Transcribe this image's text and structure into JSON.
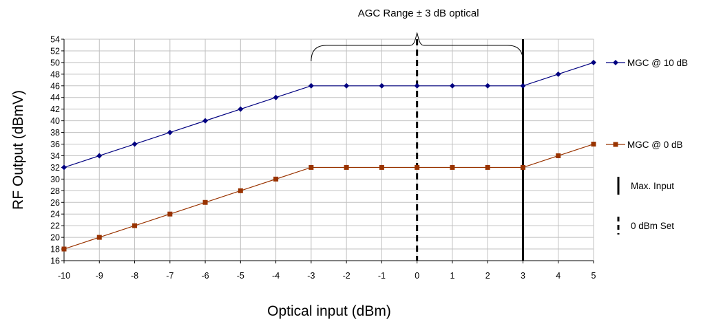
{
  "chart_data": {
    "type": "line",
    "title": "",
    "xlabel": "Optical input (dBm)",
    "ylabel": "RF Output (dBmV)",
    "x": [
      -10,
      -9,
      -8,
      -7,
      -6,
      -5,
      -4,
      -3,
      -2,
      -1,
      0,
      1,
      2,
      3,
      4,
      5
    ],
    "xlim": [
      -10,
      5
    ],
    "ylim": [
      16,
      54
    ],
    "ytick_step": 2,
    "grid": true,
    "series": [
      {
        "name": "MGC @ 10 dB",
        "color": "#000080",
        "marker": "diamond",
        "values": [
          32,
          34,
          36,
          38,
          40,
          42,
          44,
          46,
          46,
          46,
          46,
          46,
          46,
          46,
          48,
          50
        ]
      },
      {
        "name": "MGC @ 0 dB",
        "color": "#993300",
        "marker": "square",
        "values": [
          18,
          20,
          22,
          24,
          26,
          28,
          30,
          32,
          32,
          32,
          32,
          32,
          32,
          32,
          34,
          36
        ]
      }
    ],
    "reference_lines": [
      {
        "name": "Max. Input",
        "x": 3,
        "style": "solid",
        "color": "#000000"
      },
      {
        "name": "0 dBm Set",
        "x": 0,
        "style": "dashed",
        "color": "#000000"
      }
    ],
    "annotations": [
      {
        "text": "AGC Range ± 3 dB optical",
        "x_from": -3,
        "x_to": 3
      }
    ],
    "legend_position": "right"
  }
}
